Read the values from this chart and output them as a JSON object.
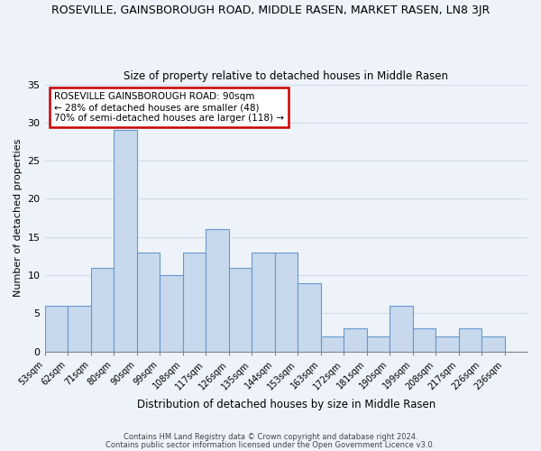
{
  "title": "ROSEVILLE, GAINSBOROUGH ROAD, MIDDLE RASEN, MARKET RASEN, LN8 3JR",
  "subtitle": "Size of property relative to detached houses in Middle Rasen",
  "xlabel": "Distribution of detached houses by size in Middle Rasen",
  "ylabel": "Number of detached properties",
  "footnote1": "Contains HM Land Registry data © Crown copyright and database right 2024.",
  "footnote2": "Contains public sector information licensed under the Open Government Licence v3.0.",
  "bin_labels": [
    "53sqm",
    "62sqm",
    "71sqm",
    "80sqm",
    "90sqm",
    "99sqm",
    "108sqm",
    "117sqm",
    "126sqm",
    "135sqm",
    "144sqm",
    "153sqm",
    "163sqm",
    "172sqm",
    "181sqm",
    "190sqm",
    "199sqm",
    "208sqm",
    "217sqm",
    "226sqm",
    "236sqm"
  ],
  "bar_heights": [
    6,
    6,
    11,
    29,
    13,
    10,
    13,
    16,
    11,
    13,
    13,
    9,
    2,
    3,
    2,
    6,
    3,
    2,
    3,
    2,
    0
  ],
  "bar_color": "#c8d8ed",
  "bar_edge_color": "#6699cc",
  "annotation_box_text": "ROSEVILLE GAINSBOROUGH ROAD: 90sqm\n← 28% of detached houses are smaller (48)\n70% of semi-detached houses are larger (118) →",
  "annotation_box_edge_color": "#cc0000",
  "annotation_box_facecolor": "#ffffff",
  "ylim": [
    0,
    35
  ],
  "yticks": [
    0,
    5,
    10,
    15,
    20,
    25,
    30,
    35
  ],
  "background_color": "#eef3fa",
  "grid_color": "#d0daea"
}
